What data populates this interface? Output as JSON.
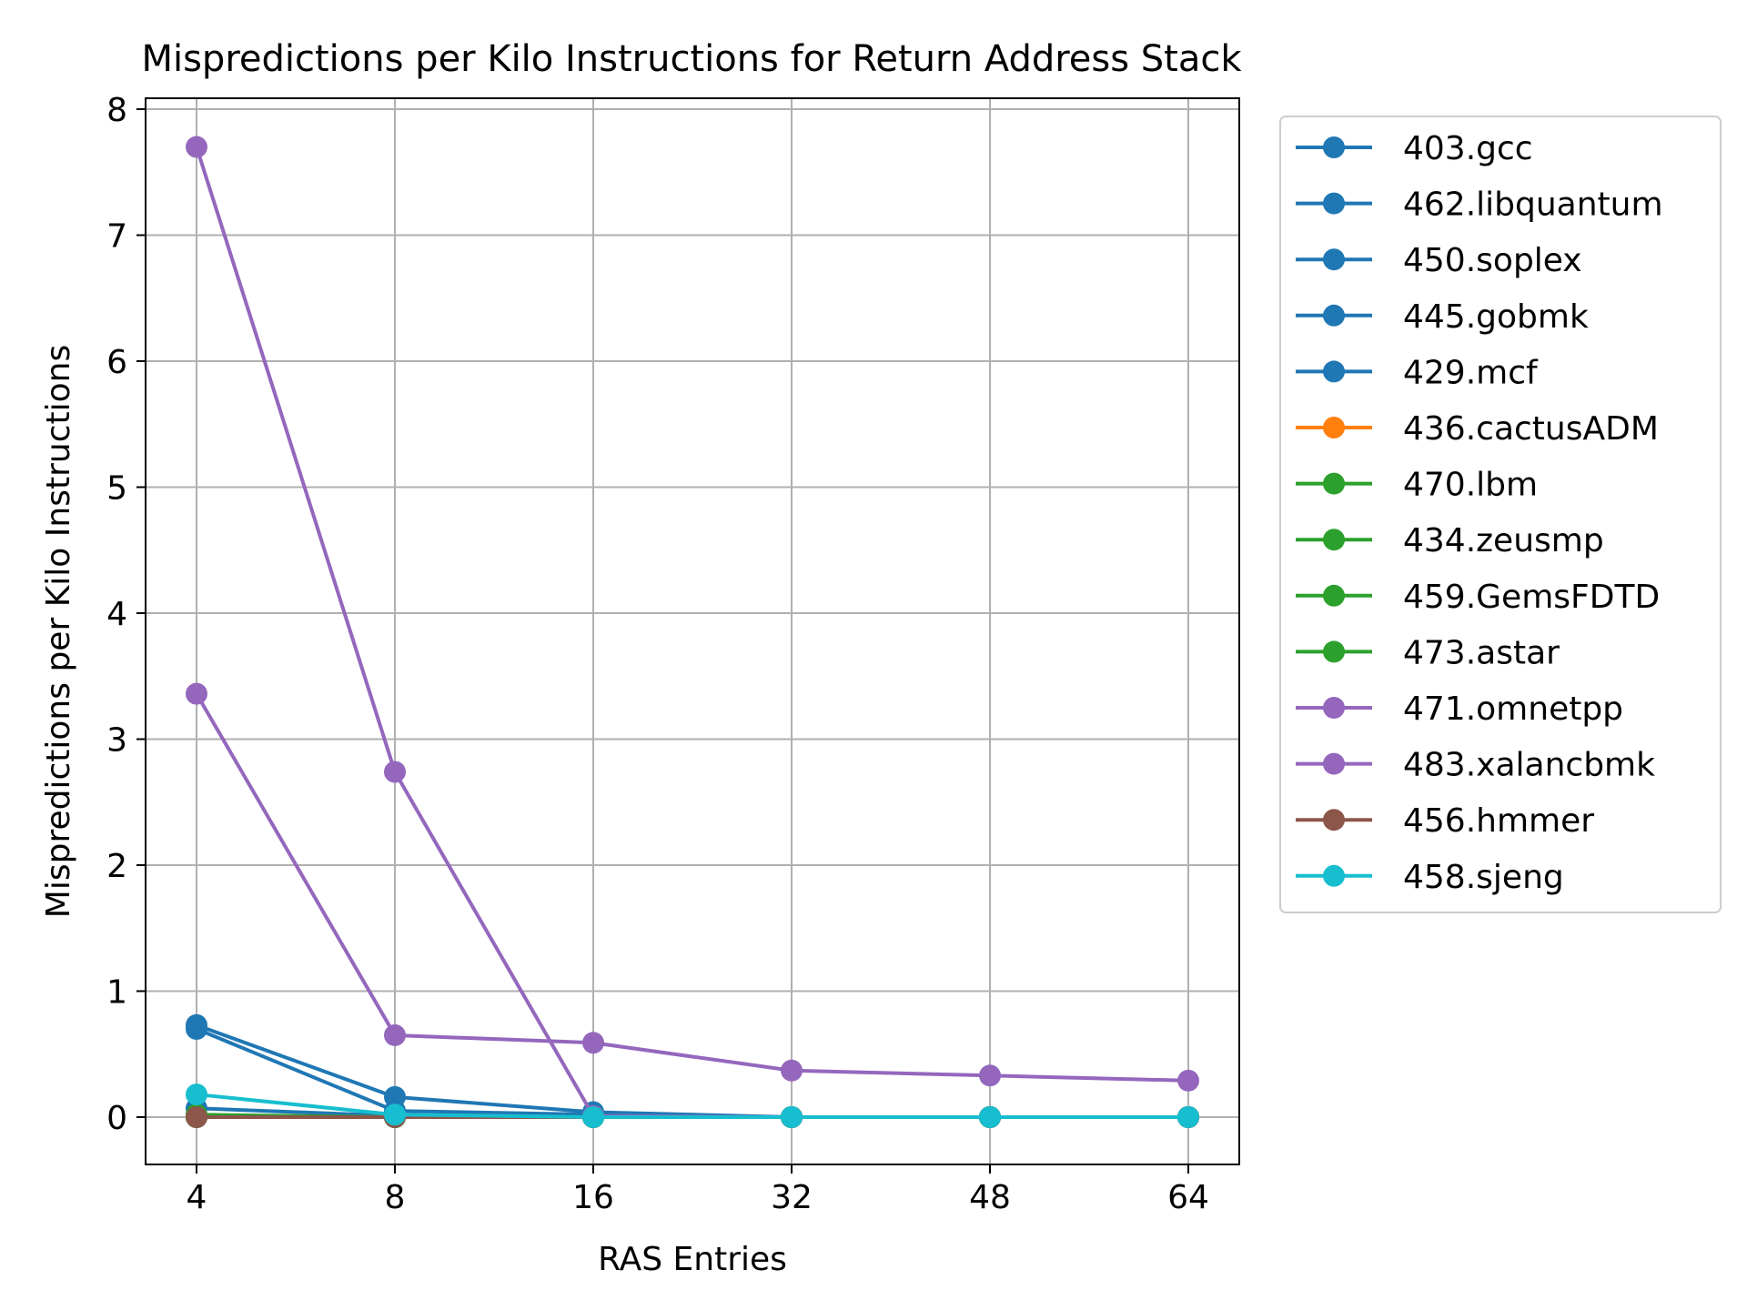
{
  "chart_data": {
    "type": "line",
    "title": "Mispredictions per Kilo Instructions for Return Address Stack",
    "xlabel": "RAS Entries",
    "ylabel": "Mispredictions per Kilo Instructions",
    "x": [
      4,
      8,
      16,
      32,
      48,
      64
    ],
    "x_tick_labels": [
      "4",
      "8",
      "16",
      "32",
      "48",
      "64"
    ],
    "x_scale": "categorical",
    "ylim": [
      -0.38,
      8.1
    ],
    "y_ticks": [
      0,
      1,
      2,
      3,
      4,
      5,
      6,
      7,
      8
    ],
    "y_tick_labels": [
      "0",
      "1",
      "2",
      "3",
      "4",
      "5",
      "6",
      "7",
      "8"
    ],
    "grid": true,
    "legend_position": "outside-right",
    "series": [
      {
        "name": "403.gcc",
        "color": "#1f77b4",
        "values": [
          0.7,
          0.05,
          0.02,
          0.0,
          0.0,
          0.0
        ]
      },
      {
        "name": "462.libquantum",
        "color": "#1f77b4",
        "values": [
          0.0,
          0.0,
          0.0,
          0.0,
          0.0,
          0.0
        ]
      },
      {
        "name": "450.soplex",
        "color": "#1f77b4",
        "values": [
          0.07,
          0.01,
          0.0,
          0.0,
          0.0,
          0.0
        ]
      },
      {
        "name": "445.gobmk",
        "color": "#1f77b4",
        "values": [
          0.73,
          0.16,
          0.04,
          0.0,
          0.0,
          0.0
        ]
      },
      {
        "name": "429.mcf",
        "color": "#1f77b4",
        "values": [
          0.0,
          0.0,
          0.0,
          0.0,
          0.0,
          0.0
        ]
      },
      {
        "name": "436.cactusADM",
        "color": "#ff7f0e",
        "values": [
          0.01,
          0.0,
          0.0,
          0.0,
          0.0,
          0.0
        ]
      },
      {
        "name": "470.lbm",
        "color": "#2ca02c",
        "values": [
          0.0,
          0.0,
          0.0,
          0.0,
          0.0,
          0.0
        ]
      },
      {
        "name": "434.zeusmp",
        "color": "#2ca02c",
        "values": [
          0.01,
          0.0,
          0.0,
          0.0,
          0.0,
          0.0
        ]
      },
      {
        "name": "459.GemsFDTD",
        "color": "#2ca02c",
        "values": [
          0.0,
          0.0,
          0.0,
          0.0,
          0.0,
          0.0
        ]
      },
      {
        "name": "473.astar",
        "color": "#2ca02c",
        "values": [
          0.02,
          0.0,
          0.0,
          0.0,
          0.0,
          0.0
        ]
      },
      {
        "name": "471.omnetpp",
        "color": "#9467bd",
        "values": [
          7.7,
          2.74,
          0.01,
          0.0,
          0.0,
          0.0
        ]
      },
      {
        "name": "483.xalancbmk",
        "color": "#9467bd",
        "values": [
          3.36,
          0.65,
          0.59,
          0.37,
          0.33,
          0.29
        ]
      },
      {
        "name": "456.hmmer",
        "color": "#8c564b",
        "values": [
          0.0,
          0.0,
          0.0,
          0.0,
          0.0,
          0.0
        ]
      },
      {
        "name": "458.sjeng",
        "color": "#17becf",
        "values": [
          0.18,
          0.02,
          0.0,
          0.0,
          0.0,
          0.0
        ]
      }
    ]
  }
}
